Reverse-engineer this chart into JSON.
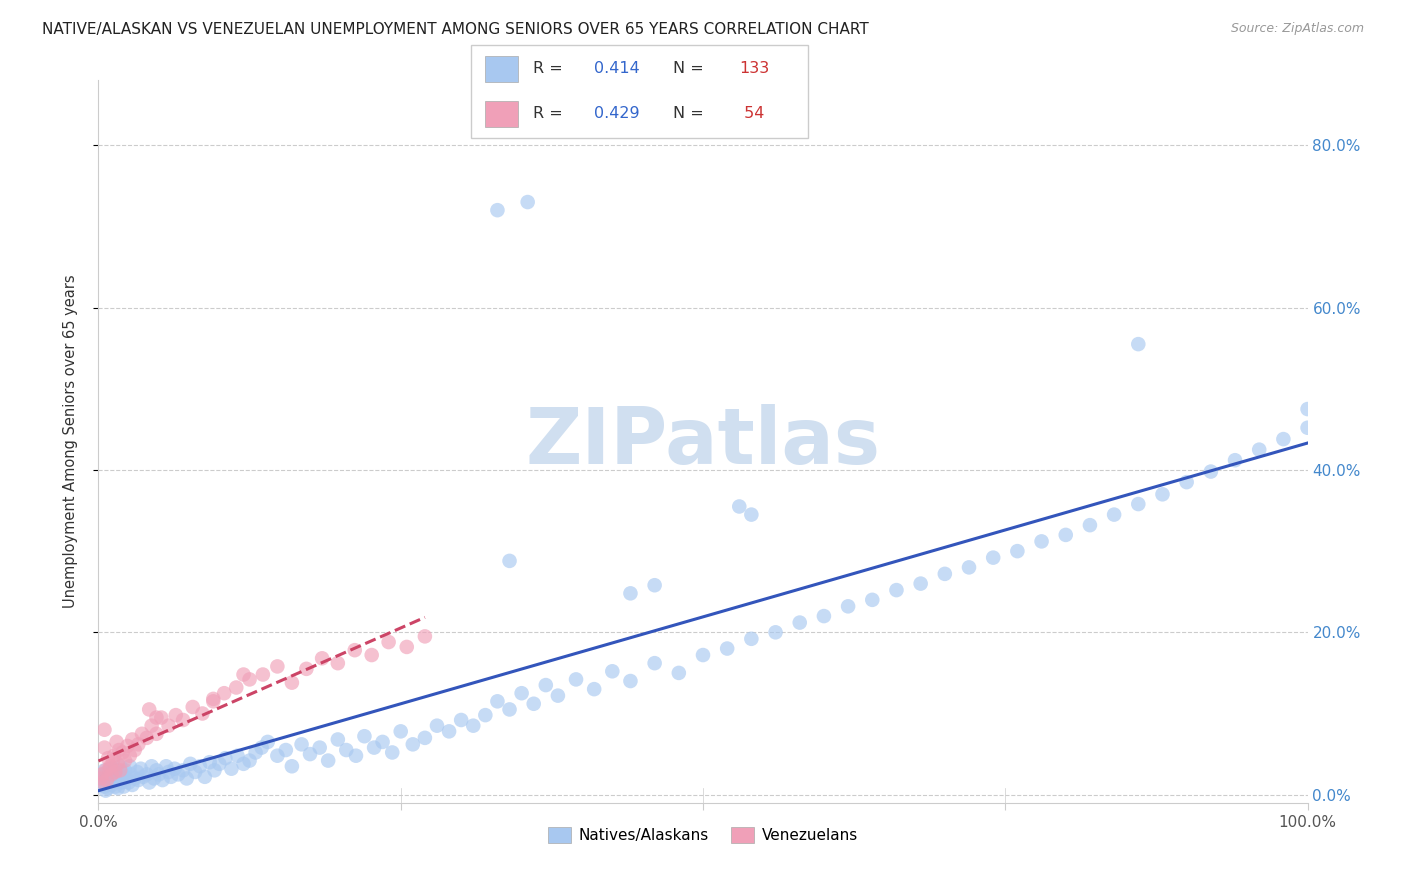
{
  "title": "NATIVE/ALASKAN VS VENEZUELAN UNEMPLOYMENT AMONG SENIORS OVER 65 YEARS CORRELATION CHART",
  "source": "Source: ZipAtlas.com",
  "ylabel": "Unemployment Among Seniors over 65 years",
  "legend_label1": "Natives/Alaskans",
  "legend_label2": "Venezuelans",
  "R1": 0.414,
  "N1": 133,
  "R2": 0.429,
  "N2": 54,
  "color_blue": "#a8c8f0",
  "color_pink": "#f0a0b8",
  "color_trend_blue": "#3355bb",
  "color_trend_pink": "#cc4466",
  "watermark_color": "#d0dff0",
  "background": "#ffffff",
  "ytick_vals": [
    0.0,
    0.2,
    0.4,
    0.6,
    0.8
  ],
  "ytick_labels": [
    "0.0%",
    "20.0%",
    "40.0%",
    "60.0%",
    "80.0%"
  ],
  "xlim": [
    0.0,
    1.0
  ],
  "ylim": [
    -0.01,
    0.88
  ],
  "natives_x": [
    0.002,
    0.003,
    0.004,
    0.005,
    0.005,
    0.006,
    0.007,
    0.007,
    0.008,
    0.009,
    0.01,
    0.01,
    0.011,
    0.012,
    0.013,
    0.014,
    0.015,
    0.015,
    0.016,
    0.017,
    0.018,
    0.019,
    0.02,
    0.021,
    0.022,
    0.023,
    0.025,
    0.026,
    0.027,
    0.028,
    0.03,
    0.032,
    0.033,
    0.035,
    0.037,
    0.04,
    0.042,
    0.044,
    0.046,
    0.048,
    0.05,
    0.053,
    0.056,
    0.058,
    0.06,
    0.063,
    0.066,
    0.07,
    0.073,
    0.076,
    0.08,
    0.084,
    0.088,
    0.092,
    0.096,
    0.1,
    0.105,
    0.11,
    0.115,
    0.12,
    0.125,
    0.13,
    0.135,
    0.14,
    0.148,
    0.155,
    0.16,
    0.168,
    0.175,
    0.183,
    0.19,
    0.198,
    0.205,
    0.213,
    0.22,
    0.228,
    0.235,
    0.243,
    0.25,
    0.26,
    0.27,
    0.28,
    0.29,
    0.3,
    0.31,
    0.32,
    0.33,
    0.34,
    0.35,
    0.36,
    0.37,
    0.38,
    0.395,
    0.41,
    0.425,
    0.44,
    0.46,
    0.48,
    0.5,
    0.52,
    0.54,
    0.56,
    0.58,
    0.6,
    0.62,
    0.64,
    0.66,
    0.68,
    0.7,
    0.72,
    0.74,
    0.76,
    0.78,
    0.8,
    0.82,
    0.84,
    0.86,
    0.88,
    0.9,
    0.92,
    0.94,
    0.96,
    0.98,
    1.0,
    1.0,
    0.33,
    0.355,
    0.86,
    0.53,
    0.54,
    0.44,
    0.46,
    0.34
  ],
  "natives_y": [
    0.02,
    0.015,
    0.025,
    0.01,
    0.03,
    0.005,
    0.018,
    0.028,
    0.008,
    0.022,
    0.015,
    0.032,
    0.012,
    0.025,
    0.02,
    0.01,
    0.03,
    0.018,
    0.008,
    0.022,
    0.035,
    0.015,
    0.025,
    0.01,
    0.03,
    0.02,
    0.015,
    0.035,
    0.025,
    0.012,
    0.02,
    0.028,
    0.018,
    0.032,
    0.022,
    0.025,
    0.015,
    0.035,
    0.02,
    0.03,
    0.025,
    0.018,
    0.035,
    0.028,
    0.022,
    0.032,
    0.025,
    0.03,
    0.02,
    0.038,
    0.028,
    0.035,
    0.022,
    0.04,
    0.03,
    0.038,
    0.045,
    0.032,
    0.048,
    0.038,
    0.042,
    0.052,
    0.058,
    0.065,
    0.048,
    0.055,
    0.035,
    0.062,
    0.05,
    0.058,
    0.042,
    0.068,
    0.055,
    0.048,
    0.072,
    0.058,
    0.065,
    0.052,
    0.078,
    0.062,
    0.07,
    0.085,
    0.078,
    0.092,
    0.085,
    0.098,
    0.115,
    0.105,
    0.125,
    0.112,
    0.135,
    0.122,
    0.142,
    0.13,
    0.152,
    0.14,
    0.162,
    0.15,
    0.172,
    0.18,
    0.192,
    0.2,
    0.212,
    0.22,
    0.232,
    0.24,
    0.252,
    0.26,
    0.272,
    0.28,
    0.292,
    0.3,
    0.312,
    0.32,
    0.332,
    0.345,
    0.358,
    0.37,
    0.385,
    0.398,
    0.412,
    0.425,
    0.438,
    0.452,
    0.475,
    0.72,
    0.73,
    0.555,
    0.355,
    0.345,
    0.248,
    0.258,
    0.288
  ],
  "venezuelan_x": [
    0.002,
    0.003,
    0.004,
    0.005,
    0.005,
    0.006,
    0.007,
    0.008,
    0.009,
    0.01,
    0.011,
    0.012,
    0.013,
    0.014,
    0.015,
    0.016,
    0.017,
    0.018,
    0.02,
    0.022,
    0.024,
    0.026,
    0.028,
    0.03,
    0.033,
    0.036,
    0.04,
    0.044,
    0.048,
    0.052,
    0.058,
    0.064,
    0.07,
    0.078,
    0.086,
    0.095,
    0.104,
    0.114,
    0.125,
    0.136,
    0.148,
    0.16,
    0.172,
    0.185,
    0.198,
    0.212,
    0.226,
    0.24,
    0.255,
    0.27,
    0.12,
    0.095,
    0.042,
    0.048
  ],
  "venezuelan_y": [
    0.02,
    0.025,
    0.015,
    0.058,
    0.08,
    0.03,
    0.018,
    0.045,
    0.032,
    0.035,
    0.025,
    0.042,
    0.048,
    0.028,
    0.065,
    0.038,
    0.055,
    0.03,
    0.052,
    0.042,
    0.06,
    0.048,
    0.068,
    0.055,
    0.062,
    0.075,
    0.07,
    0.085,
    0.075,
    0.095,
    0.085,
    0.098,
    0.092,
    0.108,
    0.1,
    0.115,
    0.125,
    0.132,
    0.142,
    0.148,
    0.158,
    0.138,
    0.155,
    0.168,
    0.162,
    0.178,
    0.172,
    0.188,
    0.182,
    0.195,
    0.148,
    0.118,
    0.105,
    0.095
  ]
}
